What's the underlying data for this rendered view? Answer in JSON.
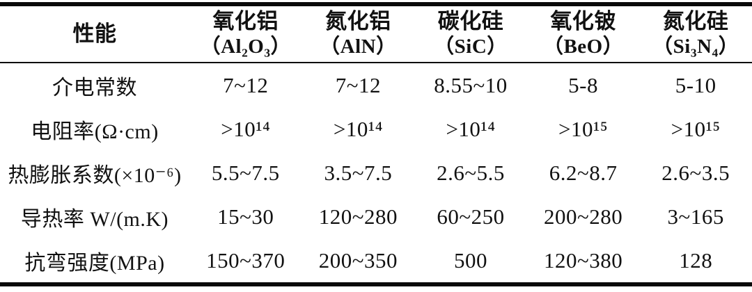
{
  "table": {
    "header": {
      "property_label": "性能",
      "columns": [
        {
          "name": "氧化铝",
          "formula": "（Al₂O₃）"
        },
        {
          "name": "氮化铝",
          "formula": "（AlN）"
        },
        {
          "name": "碳化硅",
          "formula": "（SiC）"
        },
        {
          "name": "氧化铍",
          "formula": "（BeO）"
        },
        {
          "name": "氮化硅",
          "formula": "（Si₃N₄）"
        }
      ]
    },
    "rows": [
      {
        "label": "介电常数",
        "values": [
          "7~12",
          "7~12",
          "8.55~10",
          "5-8",
          "5-10"
        ]
      },
      {
        "label": "电阻率(Ω·cm)",
        "values": [
          ">10¹⁴",
          ">10¹⁴",
          ">10¹⁴",
          ">10¹⁵",
          ">10¹⁵"
        ]
      },
      {
        "label": "热膨胀系数(×10⁻⁶)",
        "values": [
          "5.5~7.5",
          "3.5~7.5",
          "2.6~5.5",
          "6.2~8.7",
          "2.6~3.5"
        ]
      },
      {
        "label": "导热率 W/(m.K)",
        "values": [
          "15~30",
          "120~280",
          "60~250",
          "200~280",
          "3~165"
        ]
      },
      {
        "label": "抗弯强度(MPa)",
        "values": [
          "150~370",
          "200~350",
          "500",
          "120~380",
          "128"
        ]
      }
    ]
  },
  "colors": {
    "text": "#111111",
    "rule": "#0a0a0a",
    "background": "#ffffff"
  }
}
